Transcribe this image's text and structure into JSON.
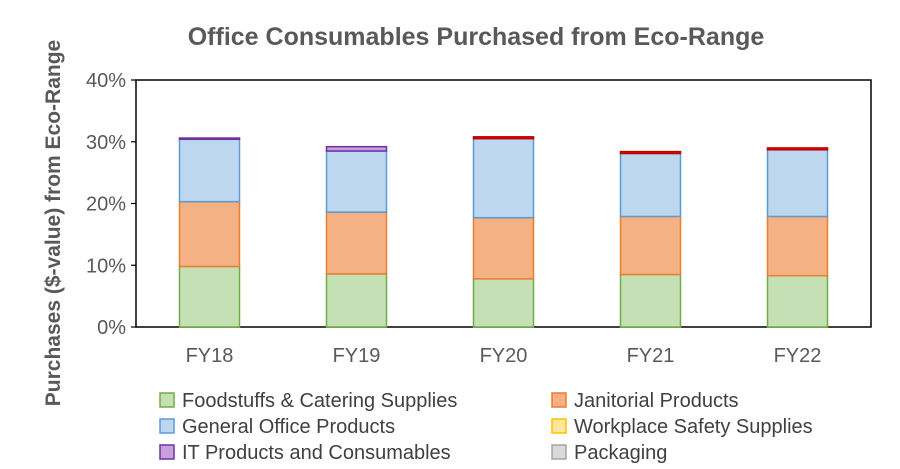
{
  "chart_data": {
    "type": "bar",
    "stacked": true,
    "title": "Office Consumables Purchased from Eco-Range",
    "xlabel": "",
    "ylabel": "Purchases ($-value) from Eco-Range",
    "ylim": [
      0,
      40
    ],
    "yticks": [
      "0%",
      "10%",
      "20%",
      "30%",
      "40%"
    ],
    "grid": false,
    "legend_position": "bottom",
    "categories": [
      "FY18",
      "FY19",
      "FY20",
      "FY21",
      "FY22"
    ],
    "series": [
      {
        "name": "Foodstuffs & Catering Supplies",
        "fill": "#c5e0b4",
        "stroke": "#70ad47",
        "values": [
          9.8,
          8.6,
          7.8,
          8.5,
          8.3
        ]
      },
      {
        "name": "Janitorial Products",
        "fill": "#f4b183",
        "stroke": "#ed7d31",
        "values": [
          10.5,
          10.0,
          9.9,
          9.4,
          9.6
        ]
      },
      {
        "name": "General Office Products",
        "fill": "#bdd7ee",
        "stroke": "#5b9bd5",
        "values": [
          10.1,
          9.9,
          12.8,
          10.2,
          10.8
        ]
      },
      {
        "name": "Workplace Safety Supplies",
        "fill": "#ffe699",
        "stroke": "#ffc000",
        "values": [
          0.0,
          0.0,
          0.0,
          0.0,
          0.0
        ]
      },
      {
        "name": "IT Products and Consumables",
        "fill": "#c9a0dc",
        "stroke": "#7030a0",
        "values": [
          0.2,
          0.7,
          0.0,
          0.0,
          0.0
        ]
      },
      {
        "name": "Packaging",
        "fill": "#d9d9d9",
        "stroke": "#a5a5a5",
        "values": [
          0.0,
          0.0,
          0.0,
          0.0,
          0.0
        ]
      },
      {
        "name": "",
        "fill": "#ff0000",
        "stroke": "#c00000",
        "values": [
          0.0,
          0.0,
          0.3,
          0.3,
          0.3
        ]
      }
    ]
  }
}
